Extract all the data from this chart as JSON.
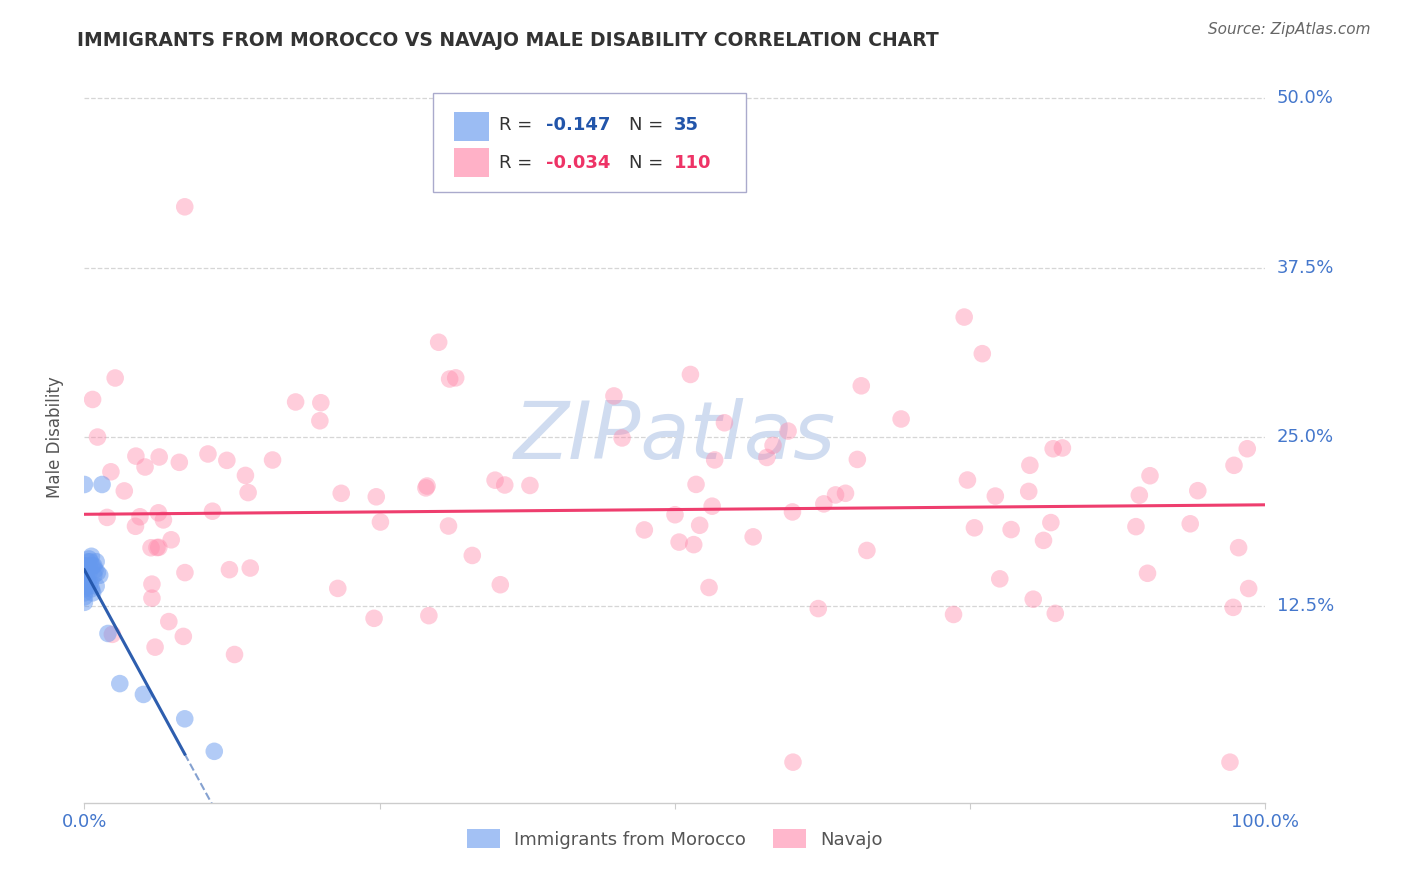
{
  "title": "IMMIGRANTS FROM MOROCCO VS NAVAJO MALE DISABILITY CORRELATION CHART",
  "source": "Source: ZipAtlas.com",
  "ylabel": "Male Disability",
  "r_morocco": -0.147,
  "n_morocco": 35,
  "r_navajo": -0.034,
  "n_navajo": 110,
  "blue_color": "#6699ee",
  "pink_color": "#ff88aa",
  "blue_line_color": "#2255aa",
  "pink_line_color": "#ee3366",
  "axis_label_color": "#4477cc",
  "title_color": "#333333",
  "watermark_color": "#d0dcf0",
  "background_color": "#ffffff",
  "grid_color": "#cccccc",
  "source_color": "#666666"
}
